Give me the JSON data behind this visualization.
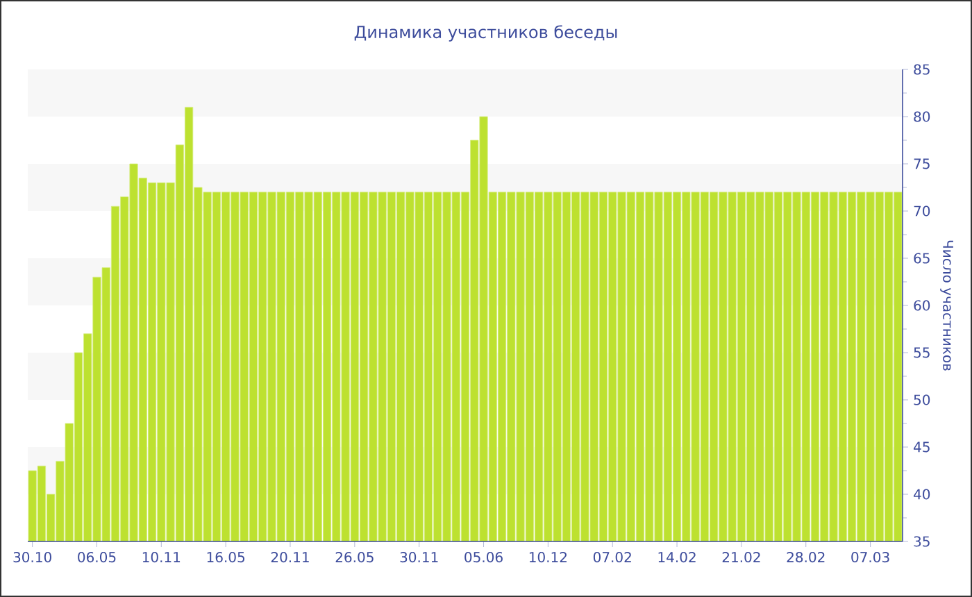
{
  "chart_data": {
    "type": "bar",
    "title": "Динамика участников беседы",
    "ylabel": "Число участников",
    "categories": [
      "30.10",
      null,
      null,
      null,
      null,
      null,
      null,
      "06.05",
      null,
      null,
      null,
      null,
      null,
      null,
      "10.11",
      null,
      null,
      null,
      null,
      null,
      null,
      "16.05",
      null,
      null,
      null,
      null,
      null,
      null,
      "20.11",
      null,
      null,
      null,
      null,
      null,
      null,
      "26.05",
      null,
      null,
      null,
      null,
      null,
      null,
      "30.11",
      null,
      null,
      null,
      null,
      null,
      null,
      "05.06",
      null,
      null,
      null,
      null,
      null,
      null,
      "10.12",
      null,
      null,
      null,
      null,
      null,
      null,
      "07.02",
      null,
      null,
      null,
      null,
      null,
      null,
      "14.02",
      null,
      null,
      null,
      null,
      null,
      null,
      "21.02",
      null,
      null,
      null,
      null,
      null,
      null,
      "28.02",
      null,
      null,
      null,
      null,
      null,
      null,
      "07.03",
      null,
      null,
      null
    ],
    "values": [
      42.5,
      43,
      40,
      43.5,
      47.5,
      55,
      57,
      63,
      64,
      70.5,
      71.5,
      75,
      73.5,
      73,
      73,
      73,
      77,
      81,
      72.5,
      72,
      72,
      72,
      72,
      72,
      72,
      72,
      72,
      72,
      72,
      72,
      72,
      72,
      72,
      72,
      72,
      72,
      72,
      72,
      72,
      72,
      72,
      72,
      72,
      72,
      72,
      72,
      72,
      72,
      77.5,
      80,
      72,
      72,
      72,
      72,
      72,
      72,
      72,
      72,
      72,
      72,
      72,
      72,
      72,
      72,
      72,
      72,
      72,
      72,
      72,
      72,
      72,
      72,
      72,
      72,
      72,
      72,
      72,
      72,
      72,
      72,
      72,
      72,
      72,
      72,
      72,
      72,
      72,
      72,
      72,
      72,
      72,
      72,
      72,
      72,
      72
    ],
    "color": "#bde130",
    "ylim": [
      35,
      85
    ],
    "yticks": [
      35,
      40,
      45,
      50,
      55,
      60,
      65,
      70,
      75,
      80,
      85
    ],
    "bands": [
      {
        "axis": "y",
        "from": 40,
        "to": 45,
        "color": "#f7f7f7"
      },
      {
        "axis": "y",
        "from": 50,
        "to": 55,
        "color": "#f7f7f7"
      },
      {
        "axis": "y",
        "from": 60,
        "to": 65,
        "color": "#f7f7f7"
      },
      {
        "axis": "y",
        "from": 70,
        "to": 75,
        "color": "#f7f7f7"
      },
      {
        "axis": "y",
        "from": 80,
        "to": 85,
        "color": "#f7f7f7"
      }
    ]
  }
}
